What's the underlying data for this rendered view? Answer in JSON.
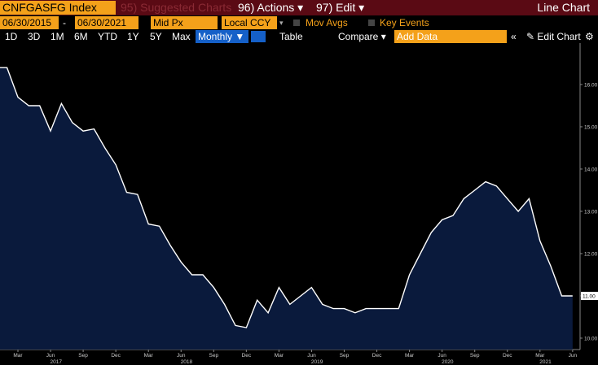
{
  "toolbar": {
    "security": "CNFGASFG Index",
    "suggested": "95) Suggested Charts",
    "actions": "96) Actions",
    "edit": "97) Edit",
    "chart_kind": "Line Chart",
    "start_date": "06/30/2015",
    "end_date": "06/30/2021",
    "price_field": "Mid Px",
    "currency": "Local CCY",
    "mov_avgs": "Mov Avgs",
    "key_events": "Key Events",
    "periods": [
      "1D",
      "3D",
      "1M",
      "6M",
      "YTD",
      "1Y",
      "5Y",
      "Max"
    ],
    "frequency": "Monthly",
    "table": "Table",
    "compare": "Compare",
    "add_data": "Add Data",
    "edit_chart": "Edit Chart"
  },
  "chart_data": {
    "type": "line",
    "categories": [
      null,
      null,
      "Mar",
      null,
      null,
      "Jun",
      null,
      null,
      "Sep",
      null,
      null,
      "Dec",
      null,
      null,
      "Mar",
      null,
      null,
      "Jun",
      null,
      null,
      "Sep",
      null,
      null,
      "Dec",
      null,
      null,
      "Mar",
      null,
      null,
      "Jun",
      null,
      null,
      "Sep",
      null,
      null,
      "Dec",
      null,
      null,
      "Mar",
      null,
      null,
      "Jun",
      null,
      null,
      "Sep",
      null,
      null,
      "Dec",
      null,
      null,
      "Mar",
      null,
      null,
      "Jun"
    ],
    "years": [
      "2017",
      "2018",
      "2019",
      "2020",
      "2021"
    ],
    "series": [
      {
        "name": "CNFGASFG Index",
        "color": "#ffffff",
        "values": [
          16.4,
          16.4,
          15.7,
          15.5,
          15.5,
          14.9,
          15.55,
          15.1,
          14.9,
          14.95,
          14.5,
          14.1,
          13.45,
          13.4,
          12.7,
          12.65,
          12.2,
          11.8,
          11.5,
          11.5,
          11.2,
          10.8,
          10.3,
          10.25,
          10.9,
          10.6,
          11.2,
          10.8,
          11.0,
          11.2,
          10.8,
          10.7,
          10.7,
          10.6,
          10.7,
          10.7,
          10.7,
          10.7,
          11.5,
          12.0,
          12.5,
          12.8,
          12.9,
          13.3,
          13.5,
          13.7,
          13.6,
          13.3,
          13.0,
          13.3,
          12.3,
          11.7,
          11.0,
          11.0
        ],
        "value_labels": [
          null,
          null,
          null,
          null,
          null,
          null,
          null,
          null,
          null,
          null,
          null,
          null,
          null,
          null,
          null,
          null,
          null,
          null,
          null,
          null,
          null,
          null,
          null,
          null,
          null,
          null,
          null,
          null,
          null,
          null,
          null,
          null,
          null,
          null,
          null,
          null,
          null,
          null,
          null,
          null,
          null,
          null,
          null,
          null,
          null,
          null,
          null,
          null,
          null,
          null,
          null,
          null,
          null,
          "11.00"
        ]
      }
    ],
    "ylim": [
      9.73,
      16.98
    ],
    "yticks": [
      {
        "value": 10,
        "label": "10.00"
      },
      {
        "value": 11,
        "label": "11.00"
      },
      {
        "value": 12,
        "label": "12.00"
      },
      {
        "value": 13,
        "label": "13.00"
      },
      {
        "value": 14,
        "label": "14.00"
      },
      {
        "value": 15,
        "label": "15.00"
      },
      {
        "value": 16,
        "label": "16.00"
      }
    ],
    "grid": false,
    "fill": "#0a1a3c"
  }
}
